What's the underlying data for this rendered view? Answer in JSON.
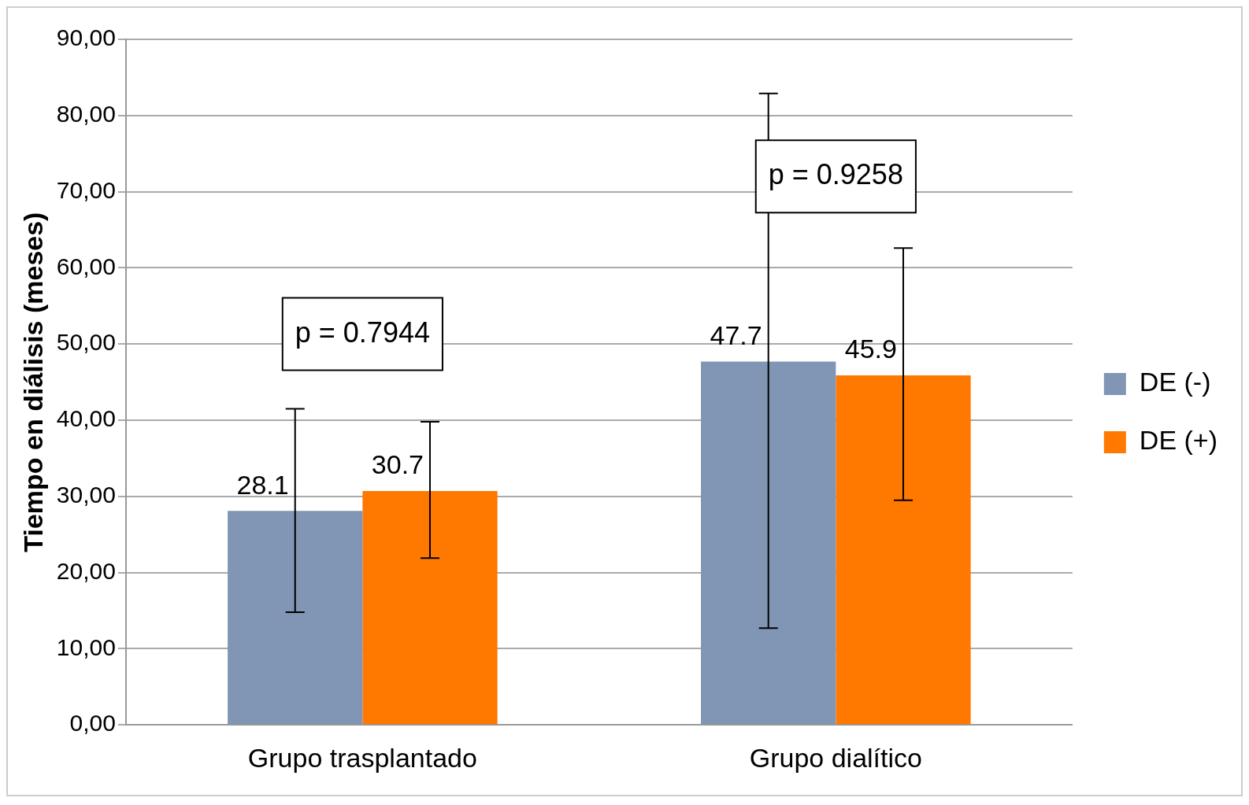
{
  "chart_data": {
    "type": "bar",
    "ylabel": "Tiempo en diálisis (meses)",
    "categories": [
      "Grupo trasplantado",
      "Grupo dialítico"
    ],
    "series": [
      {
        "name": "DE (-)",
        "color": "#8096b4",
        "values": [
          28.1,
          47.7
        ],
        "errors": [
          [
            14.8,
            41.5
          ],
          [
            12.7,
            82.9
          ]
        ]
      },
      {
        "name": "DE (+)",
        "color": "#ff7800",
        "values": [
          30.7,
          45.9
        ],
        "errors": [
          [
            21.9,
            39.8
          ],
          [
            29.5,
            62.6
          ]
        ]
      }
    ],
    "ylim": [
      0,
      90
    ],
    "yticks": [
      {
        "value": 0,
        "label": "0,00"
      },
      {
        "value": 10,
        "label": "10,00"
      },
      {
        "value": 20,
        "label": "20,00"
      },
      {
        "value": 30,
        "label": "30,00"
      },
      {
        "value": 40,
        "label": "40,00"
      },
      {
        "value": 50,
        "label": "50,00"
      },
      {
        "value": 60,
        "label": "60,00"
      },
      {
        "value": 70,
        "label": "70,00"
      },
      {
        "value": 80,
        "label": "80,00"
      },
      {
        "value": 90,
        "label": "90,00"
      }
    ],
    "annotations": [
      "p = 0.7944",
      "p = 0.9258"
    ],
    "data_labels": true,
    "grid": "y",
    "legend": "right"
  }
}
